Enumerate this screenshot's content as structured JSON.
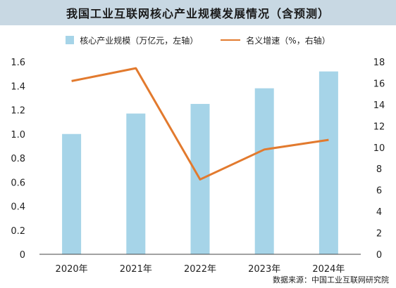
{
  "title": "我国工业互联网核心产业规模发展情况（含预测）",
  "source": "数据来源：中国工业互联网研究院",
  "colors": {
    "bar": "#a6d4e8",
    "line": "#e27a2e",
    "title_bg": "#c8d8e3"
  },
  "chart_data": {
    "type": "bar+line",
    "categories": [
      "2020年",
      "2021年",
      "2022年",
      "2023年",
      "2024年"
    ],
    "series": [
      {
        "name": "核心产业规模（万亿元，左轴）",
        "type": "bar",
        "axis": "left",
        "values": [
          1.0,
          1.17,
          1.25,
          1.38,
          1.52
        ]
      },
      {
        "name": "名义增速（%，右轴）",
        "type": "line",
        "axis": "right",
        "values": [
          16.2,
          17.4,
          7.0,
          9.8,
          10.7
        ]
      }
    ],
    "y_left": {
      "range": [
        0,
        1.6
      ],
      "ticks": [
        "0",
        "0.2",
        "0.4",
        "0.6",
        "0.8",
        "1.0",
        "1.2",
        "1.4",
        "1.6"
      ]
    },
    "y_right": {
      "range": [
        0,
        18
      ],
      "ticks": [
        "0",
        "2",
        "4",
        "6",
        "8",
        "10",
        "12",
        "14",
        "16",
        "18"
      ]
    },
    "legend_position": "top",
    "grid": false
  }
}
